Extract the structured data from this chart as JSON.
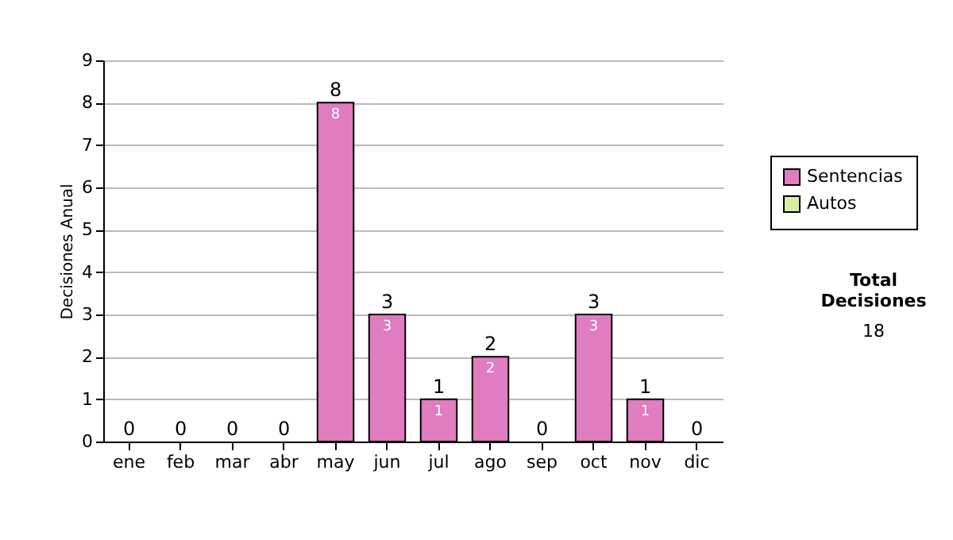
{
  "chart_data": {
    "type": "bar",
    "stacked": true,
    "ylabel": "Decisiones Anual",
    "categories": [
      "ene",
      "feb",
      "mar",
      "abr",
      "may",
      "jun",
      "jul",
      "ago",
      "sep",
      "oct",
      "nov",
      "dic"
    ],
    "series": [
      {
        "name": "Sentencias",
        "color": "#e07cc0",
        "values": [
          0,
          0,
          0,
          0,
          8,
          3,
          1,
          2,
          0,
          3,
          1,
          0
        ],
        "value_labels": [
          null,
          null,
          null,
          null,
          "8",
          "3",
          "1",
          "2",
          null,
          "3",
          "1",
          null
        ]
      },
      {
        "name": "Autos",
        "color": "#d8eea6",
        "values": [
          0,
          0,
          0,
          0,
          0,
          0,
          0,
          0,
          0,
          0,
          0,
          0
        ]
      }
    ],
    "totals": [
      "0",
      "0",
      "0",
      "0",
      "8",
      "3",
      "1",
      "2",
      "0",
      "3",
      "1",
      "0"
    ],
    "ylim": [
      0,
      9
    ],
    "yticks": [
      0,
      1,
      2,
      3,
      4,
      5,
      6,
      7,
      8,
      9
    ],
    "grid": "y",
    "legend": "right",
    "annotations": [
      "Total Decisiones",
      "18"
    ]
  }
}
